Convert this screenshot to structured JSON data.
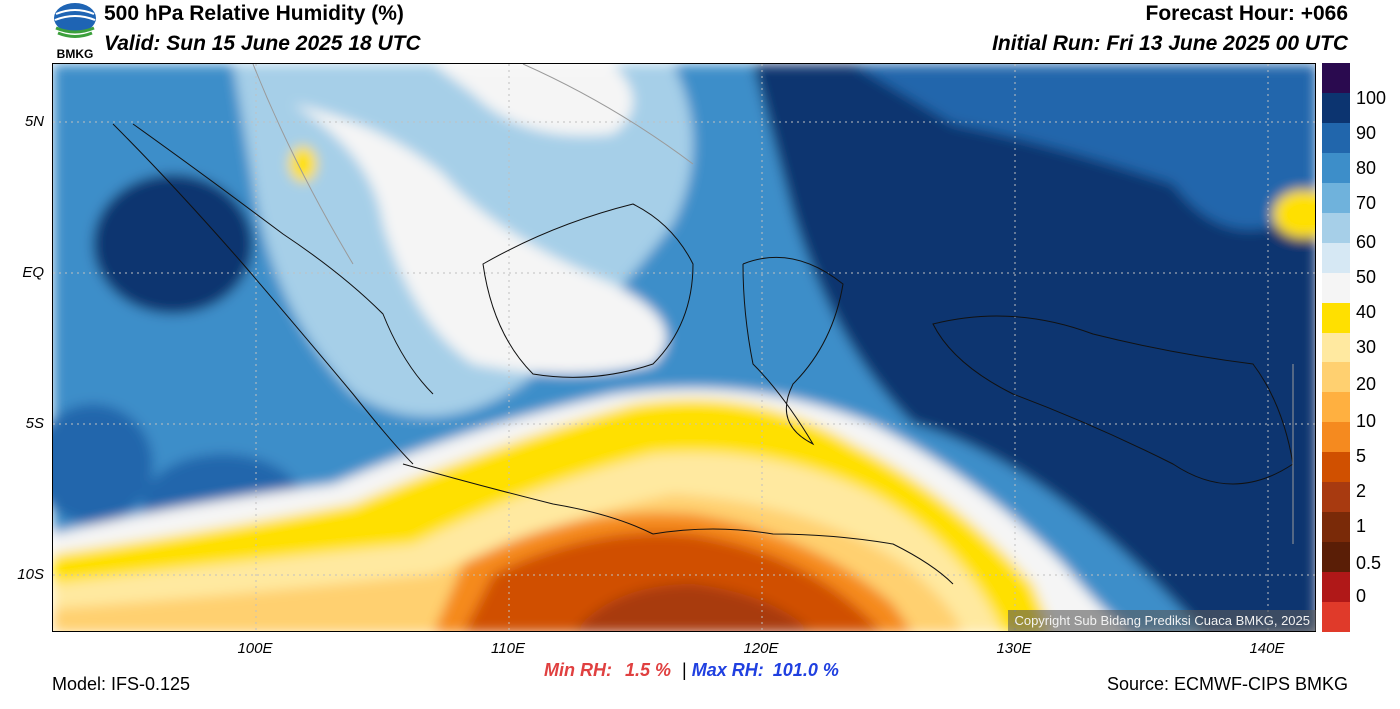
{
  "header": {
    "title": "500 hPa Relative Humidity (%)",
    "valid": "Valid: Sun 15 June 2025 18 UTC",
    "forecast_hour": "Forecast Hour: +066",
    "initial_run": "Initial Run: Fri 13 June 2025 00 UTC"
  },
  "logo": {
    "text": "BMKG",
    "icon": "bmkg-logo"
  },
  "map": {
    "lat_labels": [
      "5N",
      "EQ",
      "5S",
      "10S"
    ],
    "lon_labels": [
      "100E",
      "110E",
      "120E",
      "130E",
      "140E"
    ],
    "copyright": "Copyright Sub Bidang Prediksi Cuaca BMKG, 2025"
  },
  "colorbar": {
    "labels": [
      "100",
      "90",
      "80",
      "70",
      "60",
      "50",
      "40",
      "30",
      "20",
      "10",
      "5",
      "2",
      "1",
      "0.5",
      "0"
    ],
    "colors": [
      "#2a0a4f",
      "#0c3470",
      "#2166ac",
      "#3d8ec9",
      "#6fb2dc",
      "#a6cfe8",
      "#d6e8f4",
      "#f5f5f5",
      "#ffe000",
      "#ffe9a0",
      "#ffd070",
      "#ffb040",
      "#f58a1f",
      "#d05000",
      "#a83a10",
      "#7a2a08",
      "#5a1e06",
      "#b01818",
      "#e03a2a"
    ]
  },
  "stats": {
    "min_label": "Min RH:",
    "min_value": "1.5 %",
    "separator": "|",
    "max_label": "Max RH:",
    "max_value": "101.0 %"
  },
  "footer": {
    "model": "Model: IFS-0.125",
    "source": "Source: ECMWF-CIPS BMKG"
  }
}
